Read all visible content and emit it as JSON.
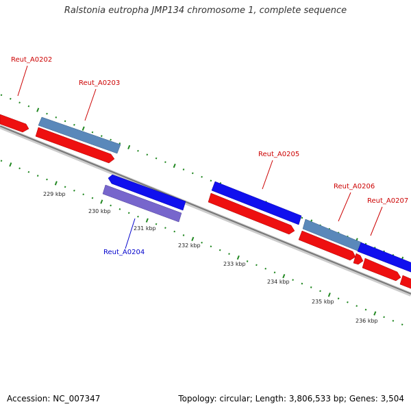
{
  "title": "Ralstonia eutropha JMP134 chromosome 1, complete sequence",
  "colors": {
    "forward_cds": "#1010ee",
    "forward_other": "#5a88ba",
    "reverse_cds": "#ee1010",
    "reverse_other": "#7766cc",
    "backbone": "#8a8a8a",
    "ticks": "#228822",
    "label_forward": "#cc0000",
    "label_reverse": "#0000cc"
  },
  "ticks": [
    "229 kbp",
    "230 kbp",
    "231 kbp",
    "232 kbp",
    "233 kbp",
    "234 kbp",
    "235 kbp",
    "236 kbp"
  ],
  "features": [
    {
      "name": "Reut_A0202",
      "strand": "forward"
    },
    {
      "name": "Reut_A0203",
      "strand": "forward"
    },
    {
      "name": "Reut_A0204",
      "strand": "reverse"
    },
    {
      "name": "Reut_A0205",
      "strand": "forward"
    },
    {
      "name": "Reut_A0206",
      "strand": "forward"
    },
    {
      "name": "Reut_A0207",
      "strand": "forward"
    }
  ],
  "footer": {
    "accession": "Accession: NC_007347",
    "topology": "Topology: circular; Length: 3,806,533 bp; Genes: 3,504"
  }
}
